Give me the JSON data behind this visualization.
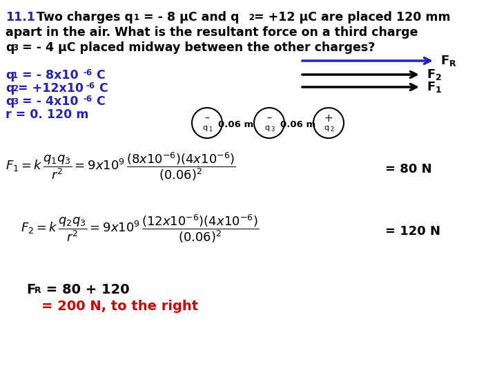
{
  "bg_color": "#ffffff",
  "blue_color": "#2222bb",
  "red_color": "#cc0000",
  "black_color": "#000000",
  "figsize": [
    7.2,
    5.4
  ],
  "dpi": 100,
  "title_lines": [
    "11.1 Two charges q₁ = - 8 μC and q₂= +12 μC are placed 120 mm",
    "apart in the air. What is the resultant force on a third charge",
    "q₃ = - 4 μC placed midway between the other charges?"
  ],
  "given_lines": [
    "q₁ = - 8x10⁻⁶ C",
    "q₂= +12x10⁻⁶ C",
    "q₃ = - 4x10⁻⁶ C",
    "r = 0. 120 m"
  ]
}
